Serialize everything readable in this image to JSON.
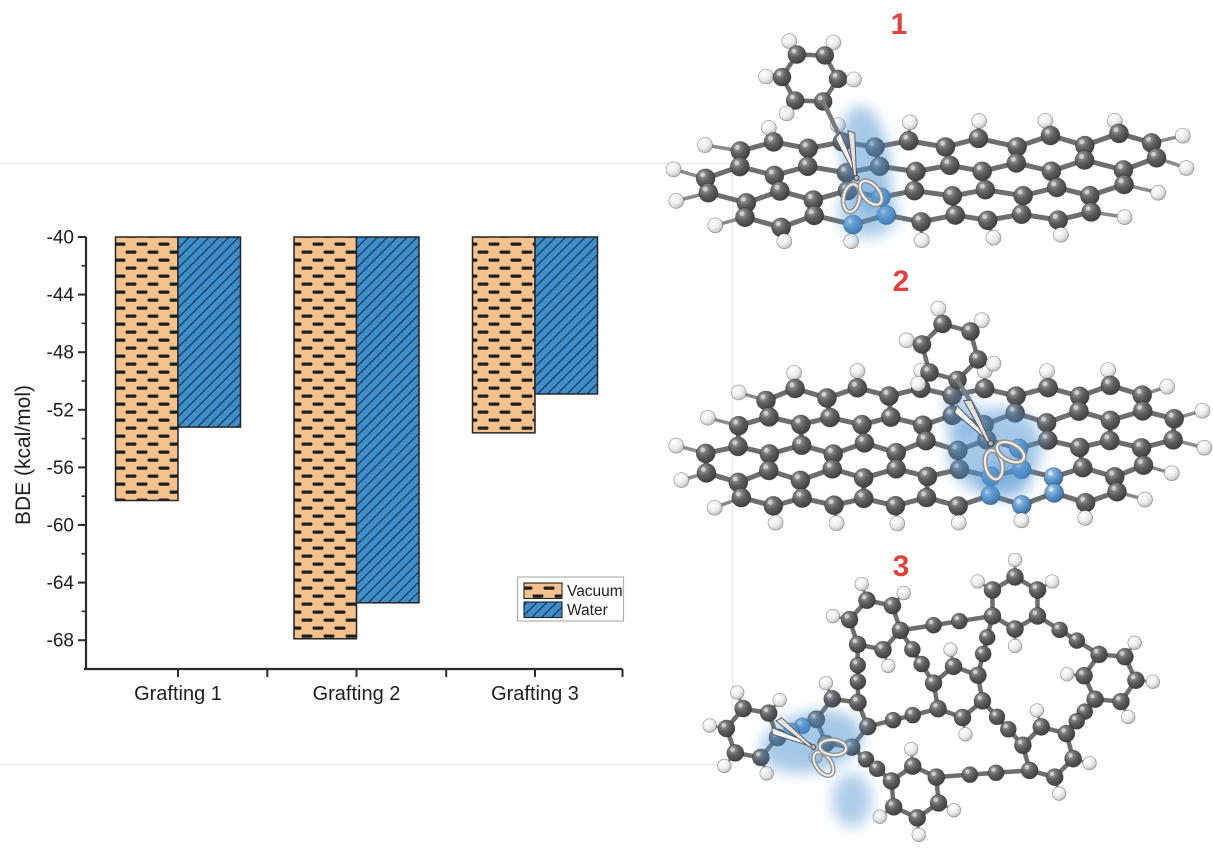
{
  "figure": {
    "panel_labels": [
      "1",
      "2",
      "3"
    ],
    "accent": {
      "highlight_blue": "#4F93D2",
      "label_red": "#E2403E",
      "carbon_gray": "#5A5A5A",
      "hydrogen_white": "#ECECEC",
      "bond_gray": "#6E6E6E"
    }
  },
  "chart_data": {
    "type": "bar",
    "title": "",
    "categories": [
      "Grafting 1",
      "Grafting 2",
      "Grafting 3"
    ],
    "series": [
      {
        "name": "Vacuum",
        "values": [
          -58.3,
          -67.9,
          -53.6
        ],
        "fill": "#F5C18D",
        "pattern": "horizontal-dashes",
        "hatch_color": "#1F1F1F"
      },
      {
        "name": "Water",
        "values": [
          -53.2,
          -65.4,
          -50.9
        ],
        "fill": "#3E8ECB",
        "pattern": "diagonal-lines",
        "hatch_color": "#16324F"
      }
    ],
    "xlabel": "",
    "ylabel": "BDE (kcal/mol)",
    "ylim": [
      -70,
      -40
    ],
    "yticks": [
      -40,
      -44,
      -48,
      -52,
      -56,
      -60,
      -64,
      -68
    ],
    "minor_yticks": [
      -42,
      -46,
      -50,
      -54,
      -58,
      -62,
      -66
    ],
    "bar_baseline": -40,
    "grid": false,
    "legend": {
      "position": "inside-bottom-right",
      "entries": [
        "Vacuum",
        "Water"
      ]
    }
  },
  "structures": [
    {
      "label": "1",
      "name": "grafting-1-structure",
      "description": "Phenyl group grafted near the edge of a PAH sheet; cleaved C-C bond highlighted in blue with scissors"
    },
    {
      "label": "2",
      "name": "grafting-2-structure",
      "description": "Phenyl group grafted at the center of a larger PAH sheet; cleaved C-C bond highlighted in blue with scissors"
    },
    {
      "label": "3",
      "name": "grafting-3-structure",
      "description": "Phenyl group grafted to a graphyne-like carbon network; cleaved C-C bond highlighted in blue with scissors"
    }
  ]
}
